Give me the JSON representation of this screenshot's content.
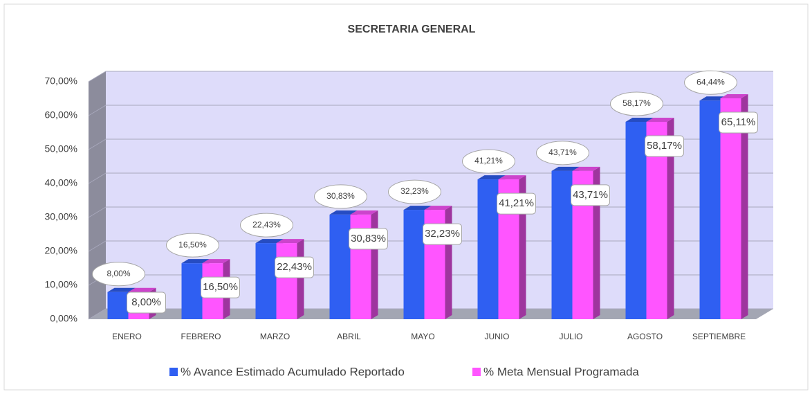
{
  "chart_data": {
    "type": "bar3d",
    "title": "SECRETARIA GENERAL",
    "categories": [
      "ENERO",
      "FEBRERO",
      "MARZO",
      "ABRIL",
      "MAYO",
      "JUNIO",
      "JULIO",
      "AGOSTO",
      "SEPTIEMBRE"
    ],
    "series": [
      {
        "name": "% Avance Estimado Acumulado Reportado",
        "color": "#2f5ff2",
        "values": [
          8.0,
          16.5,
          22.43,
          30.83,
          32.23,
          41.21,
          43.71,
          58.17,
          64.44
        ],
        "value_labels": [
          "8,00%",
          "16,50%",
          "22,43%",
          "30,83%",
          "32,23%",
          "41,21%",
          "43,71%",
          "58,17%",
          "64,44%"
        ]
      },
      {
        "name": "% Meta Mensual Programada",
        "color": "#ff55ff",
        "values": [
          8.0,
          16.5,
          22.43,
          30.83,
          32.23,
          41.21,
          43.71,
          58.17,
          65.11
        ],
        "value_labels": [
          "8,00%",
          "16,50%",
          "22,43%",
          "30,83%",
          "32,23%",
          "41,21%",
          "43,71%",
          "58,17%",
          "65,11%"
        ]
      }
    ],
    "ylim": [
      0,
      70
    ],
    "yticks": [
      {
        "value": 0,
        "label": "0,00%"
      },
      {
        "value": 10,
        "label": "10,00%"
      },
      {
        "value": 20,
        "label": "20,00%"
      },
      {
        "value": 30,
        "label": "30,00%"
      },
      {
        "value": 40,
        "label": "40,00%"
      },
      {
        "value": 50,
        "label": "50,00%"
      },
      {
        "value": 60,
        "label": "60,00%"
      },
      {
        "value": 70,
        "label": "70,00%"
      }
    ],
    "grid": true,
    "legend": "bottom"
  }
}
